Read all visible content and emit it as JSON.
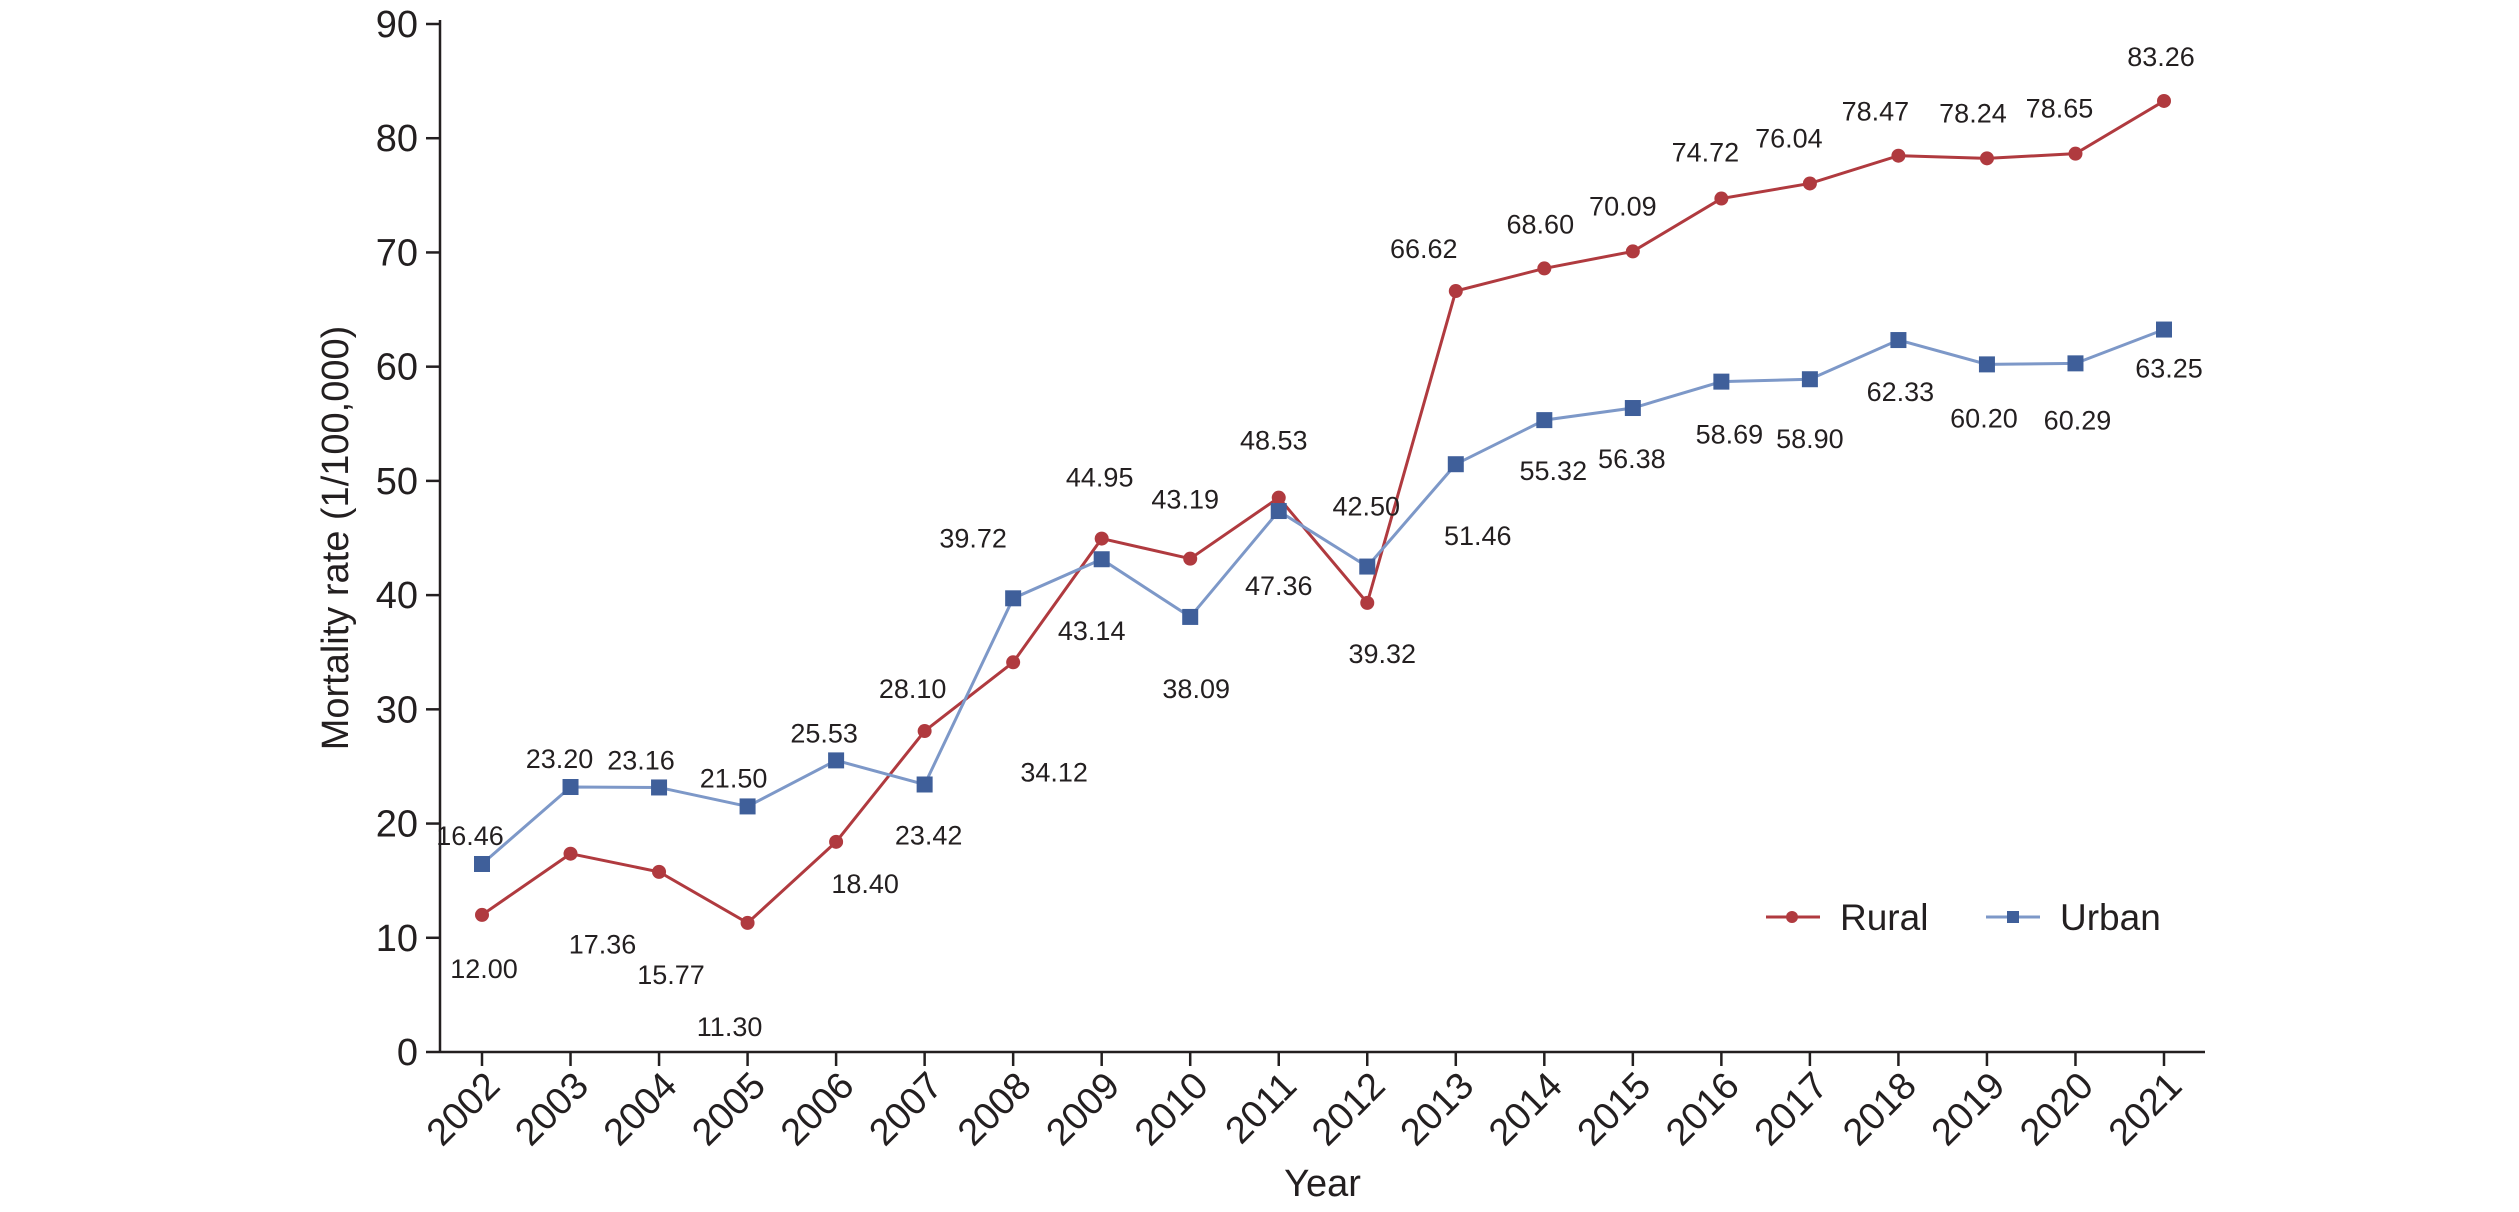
{
  "chart_data": {
    "type": "line",
    "title": "",
    "xlabel": "Year",
    "ylabel": "Mortality rate (1/100,000)",
    "ylim": [
      0,
      90
    ],
    "yticks": [
      "0",
      "10",
      "20",
      "30",
      "40",
      "50",
      "60",
      "70",
      "80",
      "90"
    ],
    "categories": [
      "2002",
      "2003",
      "2004",
      "2005",
      "2006",
      "2007",
      "2008",
      "2009",
      "2010",
      "2011",
      "2012",
      "2013",
      "2014",
      "2015",
      "2016",
      "2017",
      "2018",
      "2019",
      "2020",
      "2021"
    ],
    "grid": false,
    "legend_position": "bottom-right",
    "series": [
      {
        "name": "Rural",
        "color": "#b03a3f",
        "marker": "circle",
        "values": [
          12.0,
          17.36,
          15.77,
          11.3,
          18.4,
          28.1,
          34.12,
          44.95,
          43.19,
          48.53,
          39.32,
          66.62,
          68.6,
          70.09,
          74.72,
          76.04,
          78.47,
          78.24,
          78.65,
          83.26
        ],
        "labels": [
          "12.00",
          "17.36",
          "15.77",
          "11.30",
          "18.40",
          "28.10",
          "34.12",
          "44.95",
          "43.19",
          "48.53",
          "39.32",
          "66.62",
          "68.60",
          "70.09",
          "74.72",
          "76.04",
          "78.47",
          "78.24",
          "78.65",
          "83.26"
        ]
      },
      {
        "name": "Urban",
        "color": "#3f5f9a",
        "line_color": "#7d98c8",
        "marker": "square",
        "values": [
          16.46,
          23.2,
          23.16,
          21.5,
          25.53,
          23.42,
          39.72,
          43.14,
          38.09,
          47.36,
          42.5,
          51.46,
          55.32,
          56.38,
          58.69,
          58.9,
          62.33,
          60.2,
          60.29,
          63.25
        ],
        "labels": [
          "16.46",
          "23.20",
          "23.16",
          "21.50",
          "25.53",
          "23.42",
          "39.72",
          "43.14",
          "38.09",
          "47.36",
          "42.50",
          "51.46",
          "55.32",
          "56.38",
          "58.69",
          "58.90",
          "62.33",
          "60.20",
          "60.29",
          "63.25"
        ]
      }
    ]
  }
}
